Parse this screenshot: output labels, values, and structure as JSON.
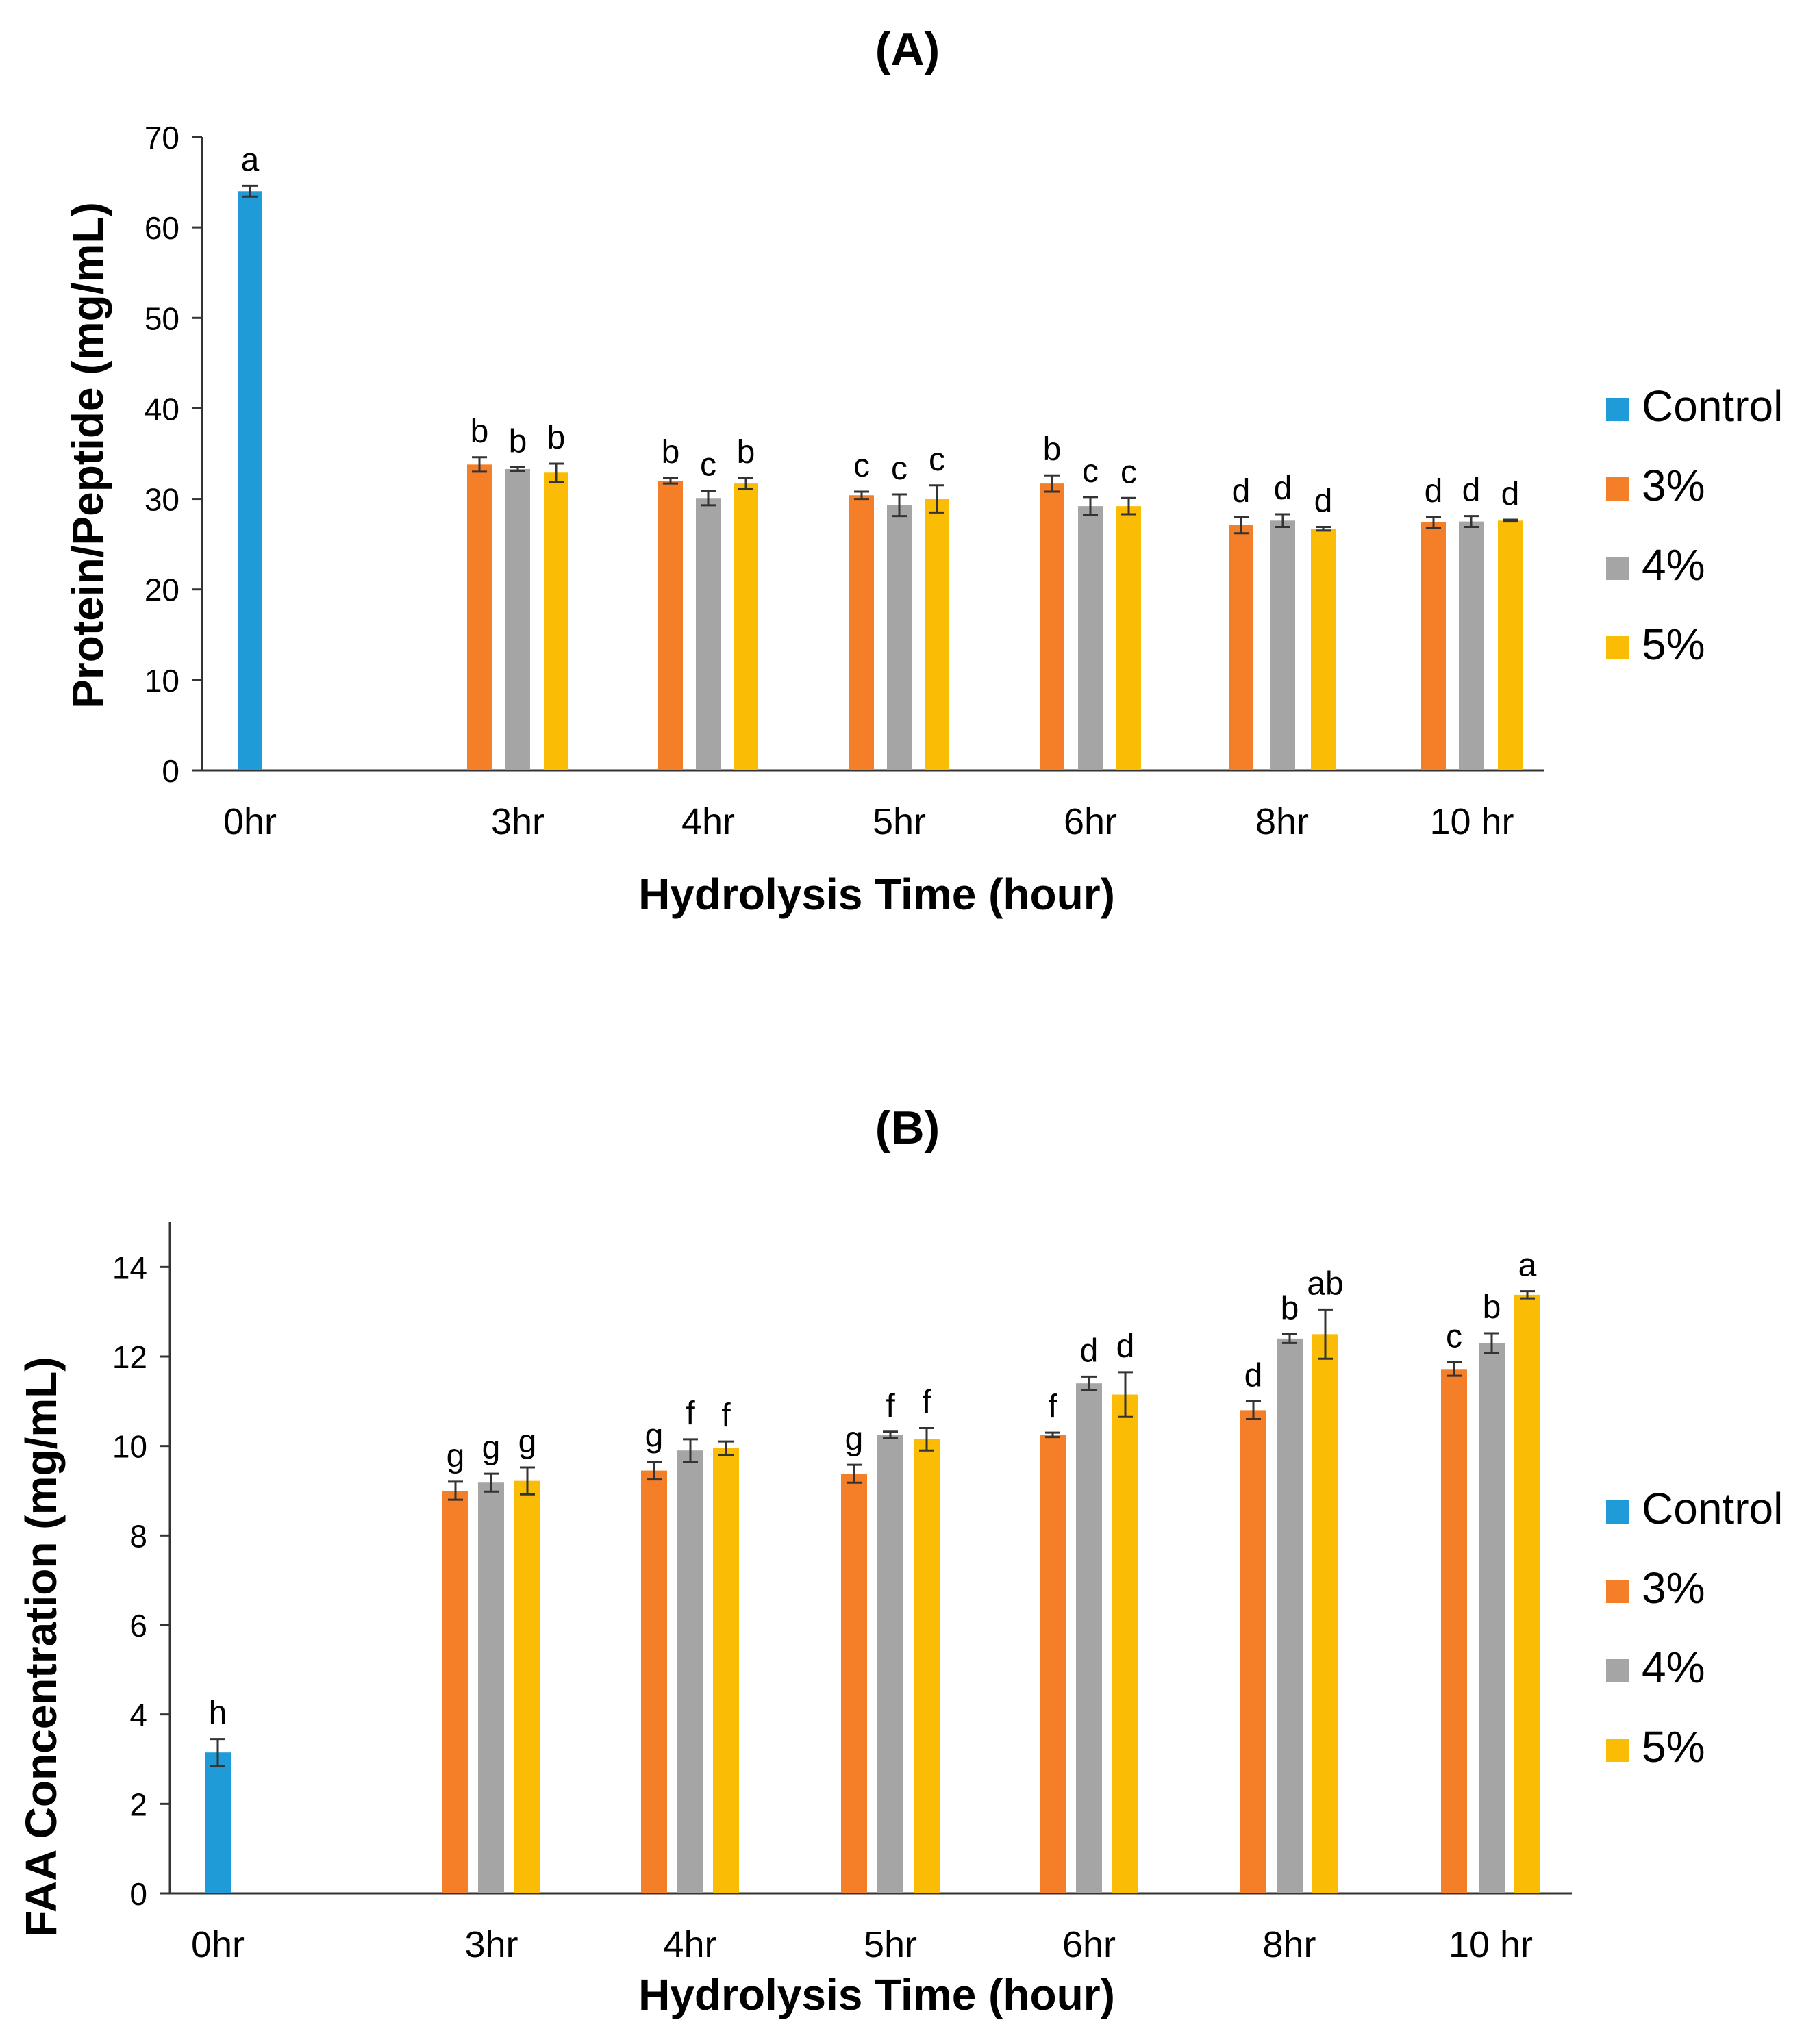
{
  "chart_data": [
    {
      "type": "bar",
      "title": "(A)",
      "xlabel": "Hydrolysis Time (hour)",
      "ylabel": "Protein/Peptide (mg/mL)",
      "ylim": [
        0,
        70
      ],
      "yticks": [
        0,
        10,
        20,
        30,
        40,
        50,
        60,
        70
      ],
      "categories": [
        "0hr",
        "3hr",
        "4hr",
        "5hr",
        "6hr",
        "8hr",
        "10 hr"
      ],
      "legend_position": "right",
      "grid": false,
      "series": [
        {
          "name": "Control",
          "color": "#1f9bd7",
          "values": [
            64.0,
            null,
            null,
            null,
            null,
            null,
            null
          ],
          "errors": [
            0.6,
            null,
            null,
            null,
            null,
            null,
            null
          ],
          "labels": [
            "a",
            "",
            "",
            "",
            "",
            "",
            ""
          ]
        },
        {
          "name": "3%",
          "color": "#f57e28",
          "values": [
            null,
            33.8,
            32.0,
            30.4,
            31.7,
            27.1,
            27.4
          ],
          "errors": [
            null,
            0.8,
            0.3,
            0.4,
            0.9,
            0.9,
            0.6
          ],
          "labels": [
            "",
            "b",
            "b",
            "c",
            "b",
            "d",
            "d"
          ]
        },
        {
          "name": "4%",
          "color": "#a5a5a5",
          "values": [
            null,
            33.3,
            30.1,
            29.3,
            29.2,
            27.6,
            27.5
          ],
          "errors": [
            null,
            0.2,
            0.8,
            1.2,
            1.0,
            0.7,
            0.6
          ],
          "labels": [
            "",
            "b",
            "c",
            "c",
            "c",
            "d",
            "d"
          ]
        },
        {
          "name": "5%",
          "color": "#fbbc05",
          "values": [
            null,
            32.9,
            31.7,
            30.0,
            29.2,
            26.7,
            27.6
          ],
          "errors": [
            null,
            1.0,
            0.6,
            1.5,
            0.9,
            0.2,
            0.1
          ],
          "labels": [
            "",
            "b",
            "b",
            "c",
            "c",
            "d",
            "d"
          ]
        }
      ]
    },
    {
      "type": "bar",
      "title": "(B)",
      "xlabel": "Hydrolysis Time (hour)",
      "ylabel": "FAA Concentration (mg/mL)",
      "ylim": [
        0,
        15
      ],
      "yticks": [
        0,
        2,
        4,
        6,
        8,
        10,
        12,
        14
      ],
      "categories": [
        "0hr",
        "3hr",
        "4hr",
        "5hr",
        "6hr",
        "8hr",
        "10 hr"
      ],
      "legend_position": "right",
      "grid": false,
      "series": [
        {
          "name": "Control",
          "color": "#1f9bd7",
          "values": [
            3.15,
            null,
            null,
            null,
            null,
            null,
            null
          ],
          "errors": [
            0.3,
            null,
            null,
            null,
            null,
            null,
            null
          ],
          "labels": [
            "h",
            "",
            "",
            "",
            "",
            "",
            ""
          ]
        },
        {
          "name": "3%",
          "color": "#f57e28",
          "values": [
            null,
            9.0,
            9.45,
            9.38,
            10.25,
            10.8,
            11.72
          ],
          "errors": [
            null,
            0.2,
            0.2,
            0.2,
            0.05,
            0.2,
            0.15
          ],
          "labels": [
            "",
            "g",
            "g",
            "g",
            "f",
            "d",
            "c"
          ]
        },
        {
          "name": "4%",
          "color": "#a5a5a5",
          "values": [
            null,
            9.18,
            9.9,
            10.25,
            11.4,
            12.4,
            12.3
          ],
          "errors": [
            null,
            0.2,
            0.25,
            0.07,
            0.15,
            0.1,
            0.22
          ],
          "labels": [
            "",
            "g",
            "f",
            "f",
            "d",
            "b",
            "b"
          ]
        },
        {
          "name": "5%",
          "color": "#fbbc05",
          "values": [
            null,
            9.22,
            9.95,
            10.15,
            11.15,
            12.5,
            13.38
          ],
          "errors": [
            null,
            0.3,
            0.15,
            0.25,
            0.5,
            0.55,
            0.08
          ],
          "labels": [
            "",
            "g",
            "f",
            "f",
            "d",
            "ab",
            "a"
          ]
        }
      ]
    }
  ]
}
